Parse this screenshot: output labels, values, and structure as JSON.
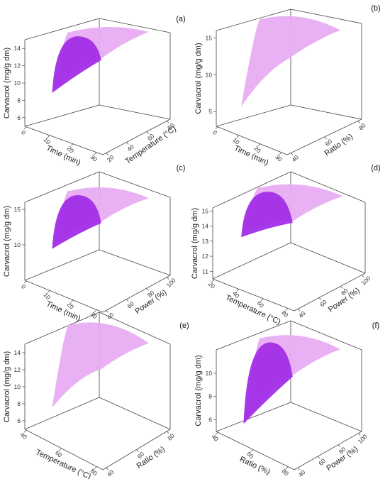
{
  "colors": {
    "surface_light": "#e8adf2",
    "surface_dark": "#a22ee6",
    "axis": "#444444",
    "background": "#ffffff"
  },
  "chart_data": [
    {
      "type": "surface3d",
      "label": "(a)",
      "zlabel": "Carvacrol (mg/g dm)",
      "zticks": [
        "6",
        "8",
        "10",
        "12",
        "14"
      ],
      "zlim": [
        5,
        15
      ],
      "xlabel": "Time (min)",
      "xticks": [
        "0",
        "10",
        "20",
        "30"
      ],
      "ylabel": "Temperature (°C)",
      "yticks": [
        "20",
        "40",
        "60",
        "80"
      ],
      "surface": {
        "low_corner_z": 10.0,
        "mid_z": 13.5,
        "high_corner_z": 14.6,
        "peak_z": 14.4
      }
    },
    {
      "type": "surface3d",
      "label": "(b)",
      "zlabel": "Carvacrol (mg/g dm)",
      "zticks": [
        "5",
        "10",
        "15"
      ],
      "zlim": [
        3,
        16
      ],
      "xlabel": "Time (min)",
      "xticks": [
        "0",
        "10",
        "20",
        "30"
      ],
      "ylabel": "Ratio (%)",
      "yticks": [
        "40",
        "60",
        "80"
      ],
      "surface": {
        "low_corner_z": 7.0,
        "mid_z": 13.0,
        "high_corner_z": 14.5,
        "peak_z": 15.8
      }
    },
    {
      "type": "surface3d",
      "label": "(c)",
      "zlabel": "Carvacrol (mg/g dm)",
      "zticks": [
        "10",
        "15"
      ],
      "zlim": [
        5,
        16
      ],
      "xlabel": "Time (min)",
      "xticks": [
        "0",
        "10",
        "20",
        "30"
      ],
      "ylabel": "Power (%)",
      "yticks": [
        "40",
        "60",
        "80",
        "100"
      ],
      "surface": {
        "low_corner_z": 11.0,
        "mid_z": 13.8,
        "high_corner_z": 14.8,
        "peak_z": 15.0
      }
    },
    {
      "type": "surface3d",
      "label": "(d)",
      "zlabel": "Carvacrol (mg/g dm)",
      "zticks": [
        "11",
        "12",
        "13",
        "14",
        "15"
      ],
      "zlim": [
        10.5,
        15.2
      ],
      "xlabel": "Temperature (°C)",
      "xticks": [
        "20",
        "40",
        "60",
        "80"
      ],
      "ylabel": "Power (%)",
      "yticks": [
        "40",
        "60",
        "80",
        "100"
      ],
      "surface": {
        "low_corner_z": 14.0,
        "mid_z": 14.4,
        "high_corner_z": 15.0,
        "peak_z": 15.1
      }
    },
    {
      "type": "surface3d",
      "label": "(e)",
      "zlabel": "Carvacrol (mg/g dm)",
      "zticks": [
        "6",
        "8",
        "10",
        "12",
        "14"
      ],
      "zlim": [
        5,
        15
      ],
      "xlabel": "Temperature (°C)",
      "xticks": [
        "40",
        "60",
        "80"
      ],
      "ylabel": "Ratio (%)",
      "yticks": [
        "40",
        "60",
        "80"
      ],
      "surface": {
        "low_corner_z": 9.2,
        "mid_z": 13.0,
        "high_corner_z": 14.0,
        "peak_z": 15.0
      }
    },
    {
      "type": "surface3d",
      "label": "(f)",
      "zlabel": "Carvacrol (mg/g dm)",
      "zticks": [
        "6",
        "8",
        "10"
      ],
      "zlim": [
        5,
        12
      ],
      "xlabel": "Ratio (%)",
      "xticks": [
        "40",
        "60",
        "80"
      ],
      "ylabel": "Power (%)",
      "yticks": [
        "40",
        "60",
        "80",
        "100"
      ],
      "surface": {
        "low_corner_z": 6.8,
        "mid_z": 10.5,
        "high_corner_z": 11.3,
        "peak_z": 11.5
      }
    }
  ]
}
